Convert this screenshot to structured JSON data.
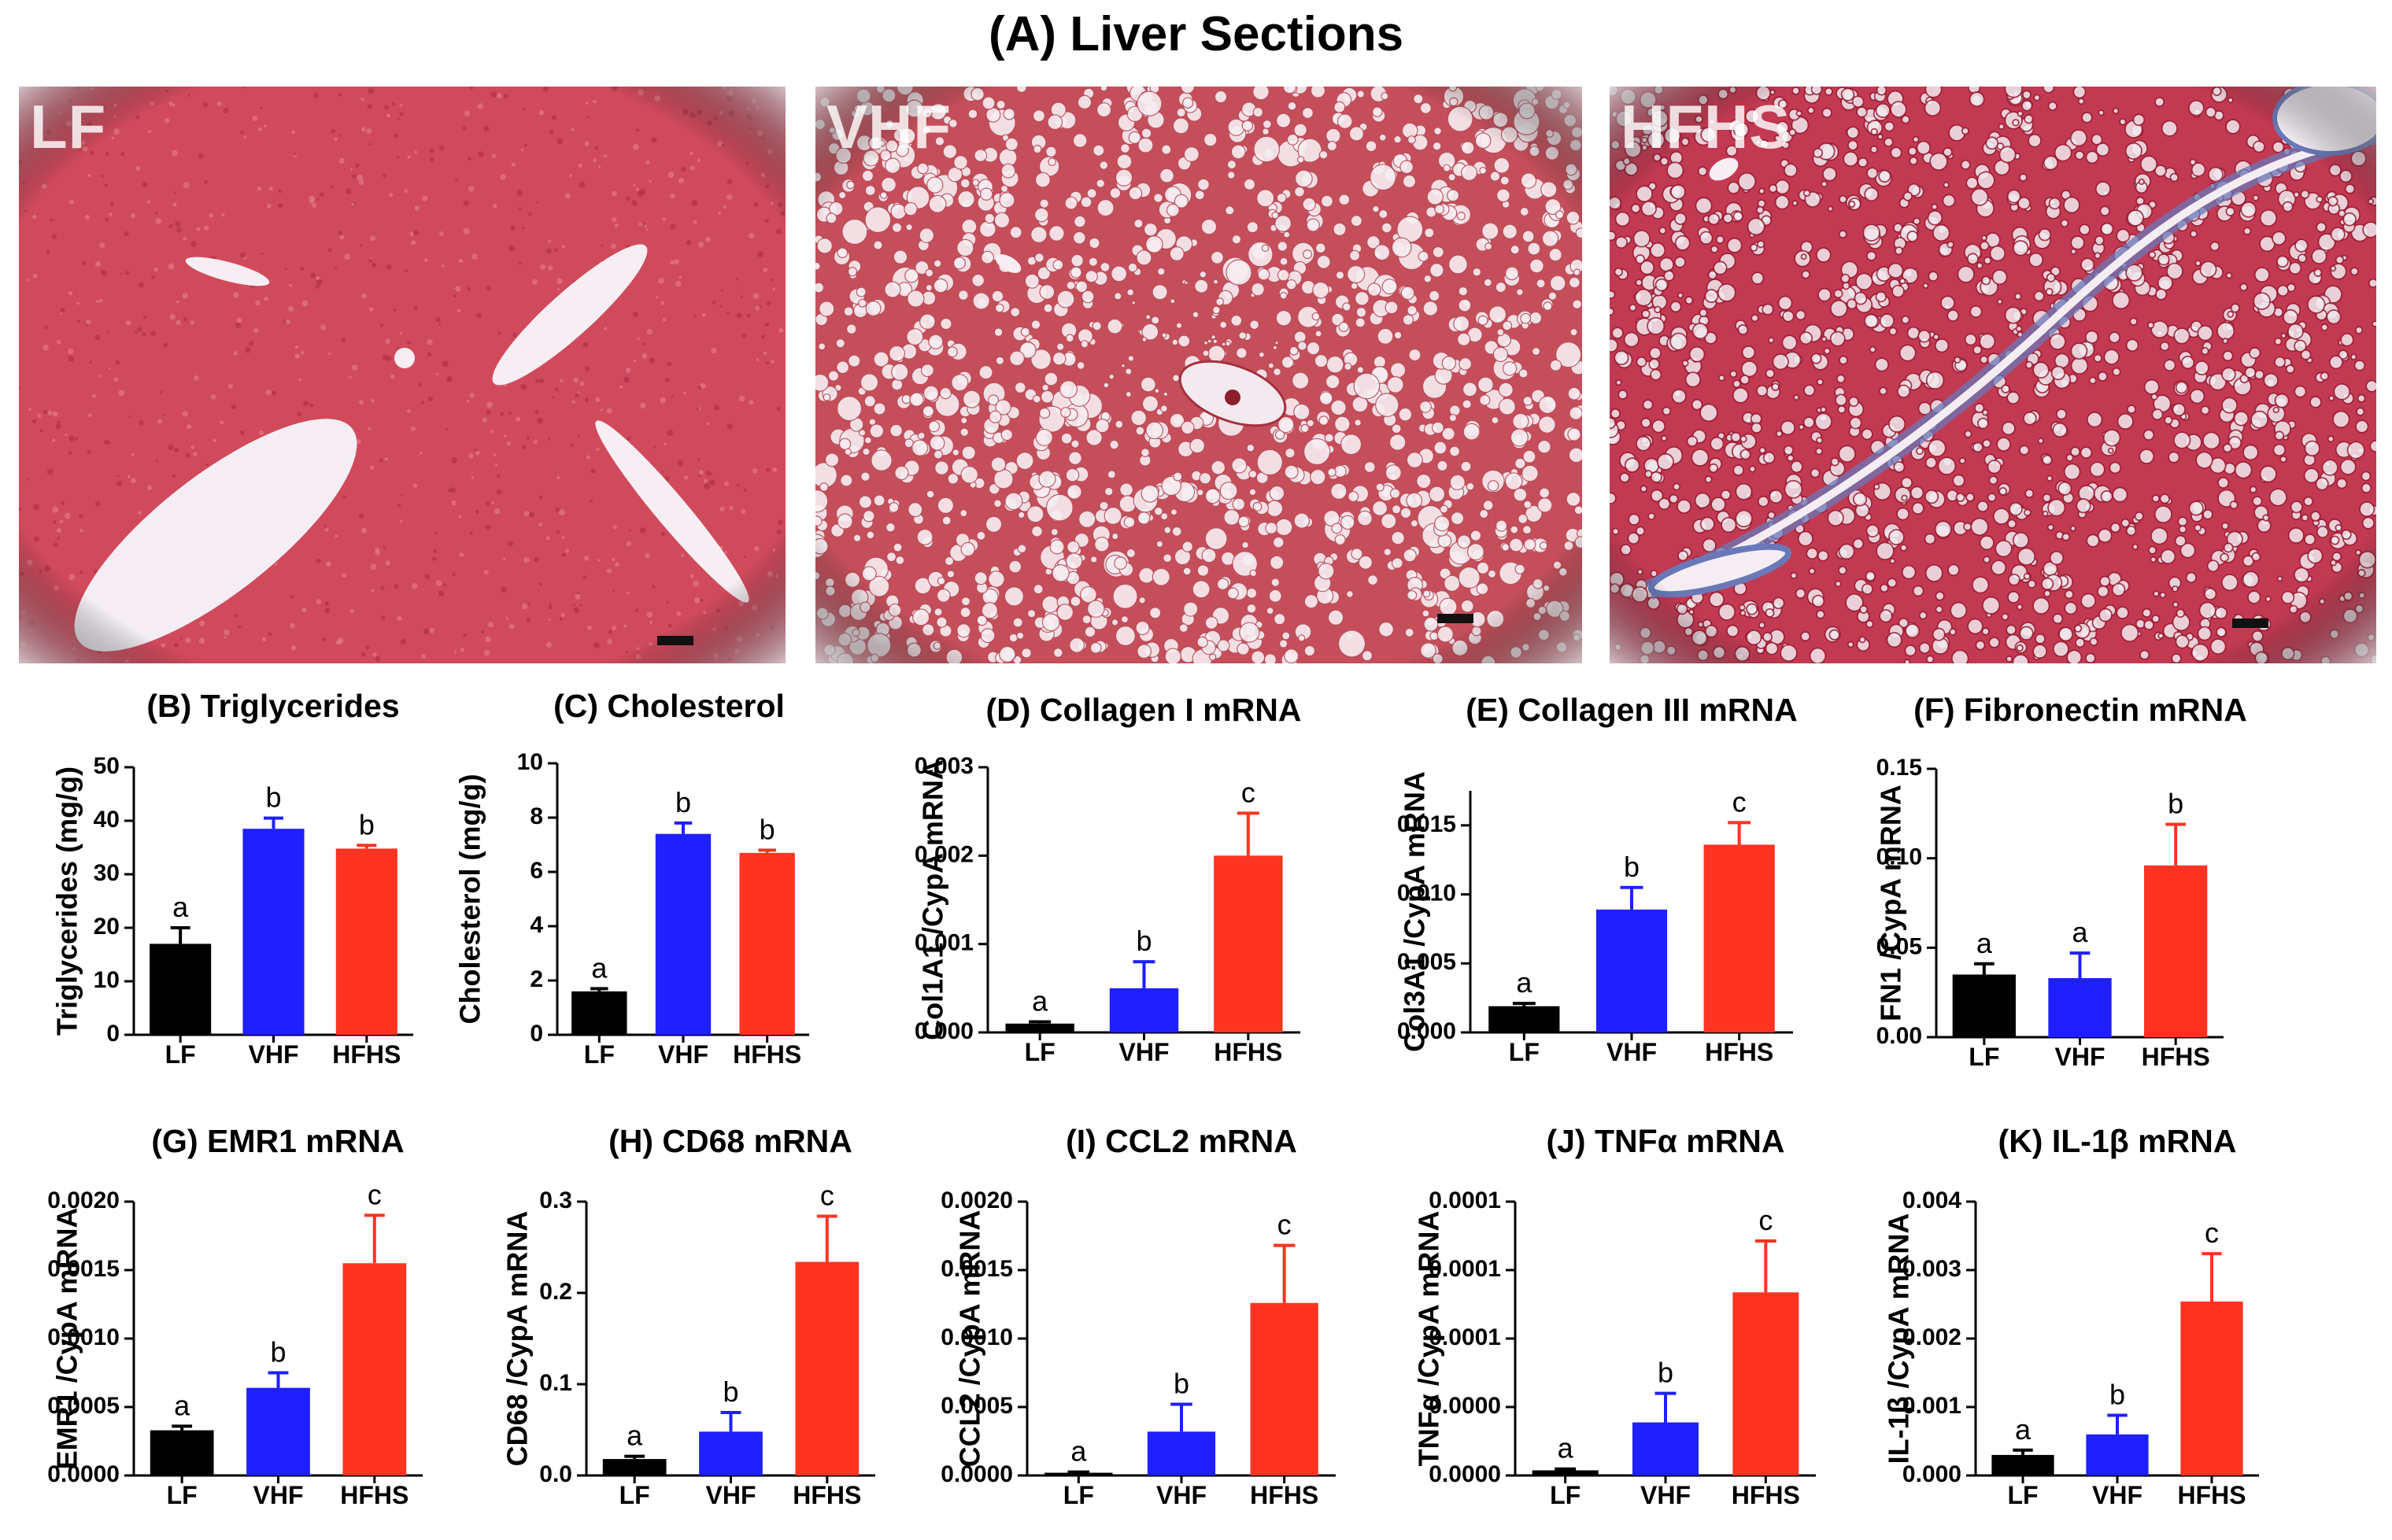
{
  "figure": {
    "title": "(A) Liver Sections",
    "photos": [
      {
        "label": "LF",
        "tissue_color": "#d04a5c",
        "style": "dense"
      },
      {
        "label": "VHF",
        "tissue_color": "#c44f5a",
        "style": "vacuolated"
      },
      {
        "label": "HFHS",
        "tissue_color": "#c23a52",
        "style": "fibrotic"
      }
    ]
  },
  "colors": {
    "LF": "#000000",
    "VHF": "#1f1fff",
    "HFHS": "#ff3322"
  },
  "chart_data": [
    {
      "id": "B",
      "type": "bar",
      "title": "(B) Triglycerides",
      "ylabel": "Triglycerides (mg/g)",
      "categories": [
        "LF",
        "VHF",
        "HFHS"
      ],
      "values": [
        17,
        38.5,
        34.8
      ],
      "errors": [
        3,
        2,
        0.6
      ],
      "letters": [
        "a",
        "b",
        "b"
      ],
      "ylim": [
        0,
        50
      ],
      "yticks": [
        0,
        10,
        20,
        30,
        40,
        50
      ],
      "ytick_labels": [
        "0",
        "10",
        "20",
        "30",
        "40",
        "50"
      ]
    },
    {
      "id": "C",
      "type": "bar",
      "title": "(C) Cholesterol",
      "ylabel": "Cholesterol (mg/g)",
      "categories": [
        "LF",
        "VHF",
        "HFHS"
      ],
      "values": [
        1.6,
        7.4,
        6.7
      ],
      "errors": [
        0.1,
        0.4,
        0.1
      ],
      "letters": [
        "a",
        "b",
        "b"
      ],
      "ylim": [
        0,
        10
      ],
      "yticks": [
        0,
        2,
        4,
        6,
        8,
        10
      ],
      "ytick_labels": [
        "0",
        "2",
        "4",
        "6",
        "8",
        "10"
      ]
    },
    {
      "id": "D",
      "type": "bar",
      "title": "(D) Collagen  I mRNA",
      "ylabel": "Col1A1 /CypA mRNA",
      "categories": [
        "LF",
        "VHF",
        "HFHS"
      ],
      "values": [
        0.0001,
        0.0005,
        0.002
      ],
      "errors": [
        2e-05,
        0.0003,
        0.00048
      ],
      "letters": [
        "a",
        "b",
        "c"
      ],
      "ylim": [
        0,
        0.003
      ],
      "yticks": [
        0,
        0.001,
        0.002,
        0.003
      ],
      "ytick_labels": [
        "0.000",
        "0.001",
        "0.002",
        "0.003"
      ]
    },
    {
      "id": "E",
      "type": "bar",
      "title": "(E) Collagen  III mRNA",
      "ylabel": "Col3A1 /CypA mRNA",
      "categories": [
        "LF",
        "VHF",
        "HFHS"
      ],
      "values": [
        0.0019,
        0.0089,
        0.0136
      ],
      "errors": [
        0.0002,
        0.0016,
        0.0016
      ],
      "letters": [
        "a",
        "b",
        "c"
      ],
      "ylim": [
        0,
        0.0175
      ],
      "yticks": [
        0,
        0.005,
        0.01,
        0.015
      ],
      "ytick_labels": [
        "0.000",
        "0.005",
        "0.010",
        "0.015"
      ]
    },
    {
      "id": "F",
      "type": "bar",
      "title": "(F) Fibronectin mRNA",
      "ylabel": "FN1 /CypA mRNA",
      "categories": [
        "LF",
        "VHF",
        "HFHS"
      ],
      "values": [
        0.035,
        0.033,
        0.096
      ],
      "errors": [
        0.006,
        0.014,
        0.023
      ],
      "letters": [
        "a",
        "a",
        "b"
      ],
      "ylim": [
        0,
        0.15
      ],
      "yticks": [
        0,
        0.05,
        0.1,
        0.15
      ],
      "ytick_labels": [
        "0.00",
        "0.05",
        "0.10",
        "0.15"
      ]
    },
    {
      "id": "G",
      "type": "bar",
      "title": "(G) EMR1 mRNA",
      "ylabel": "EMR1 /CypA mRNA",
      "categories": [
        "LF",
        "VHF",
        "HFHS"
      ],
      "values": [
        0.00033,
        0.00064,
        0.00155
      ],
      "errors": [
        3e-05,
        0.00011,
        0.00035
      ],
      "letters": [
        "a",
        "b",
        "c"
      ],
      "ylim": [
        0,
        0.002
      ],
      "yticks": [
        0,
        0.0005,
        0.001,
        0.0015,
        0.002
      ],
      "ytick_labels": [
        "0.0000",
        "0.0005",
        "0.0010",
        "0.0015",
        "0.0020"
      ]
    },
    {
      "id": "H",
      "type": "bar",
      "title": "(H) CD68 mRNA",
      "ylabel": "CD68 /CypA mRNA",
      "categories": [
        "LF",
        "VHF",
        "HFHS"
      ],
      "values": [
        0.018,
        0.048,
        0.234
      ],
      "errors": [
        0.003,
        0.021,
        0.05
      ],
      "letters": [
        "a",
        "b",
        "c"
      ],
      "ylim": [
        0,
        0.3
      ],
      "yticks": [
        0,
        0.1,
        0.2,
        0.3
      ],
      "ytick_labels": [
        "0.0",
        "0.1",
        "0.2",
        "0.3"
      ]
    },
    {
      "id": "I",
      "type": "bar",
      "title": "(I) CCL2 mRNA",
      "ylabel": "CCL2 /CypA mRNA",
      "categories": [
        "LF",
        "VHF",
        "HFHS"
      ],
      "values": [
        2e-05,
        0.00032,
        0.00126
      ],
      "errors": [
        5e-06,
        0.0002,
        0.00042
      ],
      "letters": [
        "a",
        "b",
        "c"
      ],
      "ylim": [
        0,
        0.002
      ],
      "yticks": [
        0,
        0.0005,
        0.001,
        0.0015,
        0.002
      ],
      "ytick_labels": [
        "0.0000",
        "0.0005",
        "0.0010",
        "0.0015",
        "0.0020"
      ]
    },
    {
      "id": "J",
      "type": "bar",
      "title": "(J) TNFα mRNA",
      "ylabel": "TNFα /CypA mRNA",
      "categories": [
        "LF",
        "VHF",
        "HFHS"
      ],
      "values": [
        3e-06,
        3.1e-05,
        0.000107
      ],
      "errors": [
        8e-07,
        1.7e-05,
        3e-05
      ],
      "letters": [
        "a",
        "b",
        "c"
      ],
      "ylim": [
        0,
        0.00016
      ],
      "yticks": [
        0,
        4e-05,
        8e-05,
        0.00012,
        0.00016
      ],
      "ytick_labels": [
        "0.0000",
        "0.0000",
        "0.0001",
        "0.0001",
        "0.0001"
      ]
    },
    {
      "id": "K",
      "type": "bar",
      "title": "(K) IL-1β mRNA",
      "ylabel": "IL-1β /CypA mRNA",
      "categories": [
        "LF",
        "VHF",
        "HFHS"
      ],
      "values": [
        0.0003,
        0.0006,
        0.00254
      ],
      "errors": [
        7e-05,
        0.00028,
        0.0007
      ],
      "letters": [
        "a",
        "b",
        "c"
      ],
      "ylim": [
        0,
        0.004
      ],
      "yticks": [
        0,
        0.001,
        0.002,
        0.003,
        0.004
      ],
      "ytick_labels": [
        "0.000",
        "0.001",
        "0.002",
        "0.003",
        "0.004"
      ]
    }
  ]
}
